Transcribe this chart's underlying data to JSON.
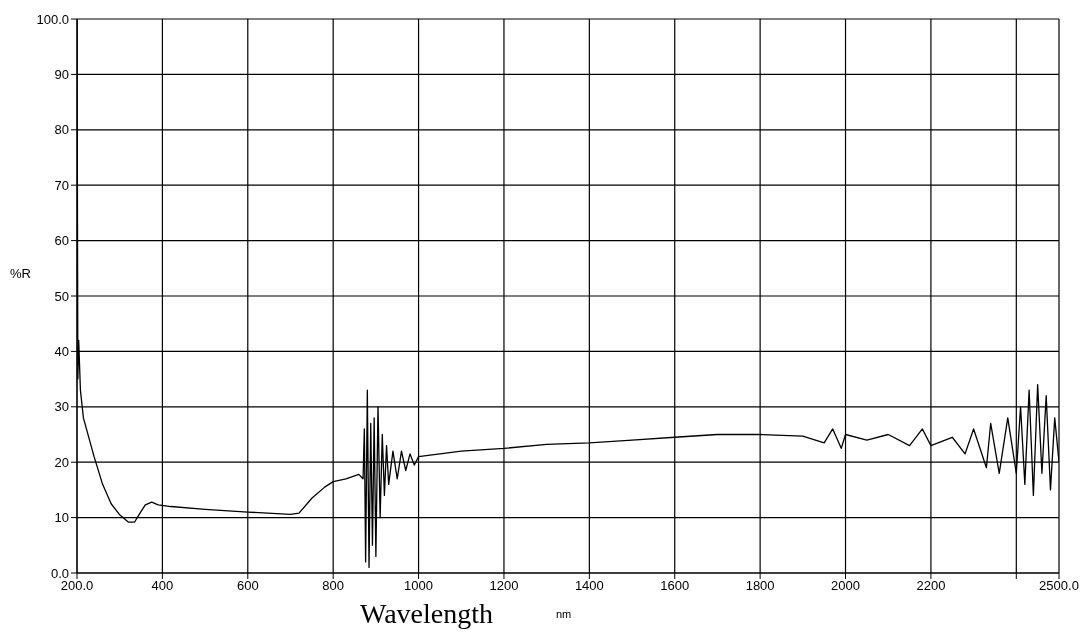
{
  "chart_data": {
    "type": "line",
    "xlabel": "Wavelength",
    "ylabel": "%R",
    "annotations": [
      "nm"
    ],
    "xlim": [
      200,
      2500
    ],
    "xticks": [
      {
        "value": 200,
        "label": "200.0"
      },
      400,
      600,
      800,
      1000,
      1200,
      1400,
      1600,
      1800,
      2000,
      2200,
      {
        "value": 2400,
        "label": null
      },
      {
        "value": 2500,
        "label": "2500.0"
      }
    ],
    "ylim": [
      0,
      100
    ],
    "yticks": [
      {
        "value": 0,
        "label": "0.0"
      },
      10,
      20,
      30,
      40,
      50,
      60,
      70,
      80,
      90,
      {
        "value": 100,
        "label": "100.0"
      }
    ],
    "grid": true,
    "marker": "none",
    "line_style": "solid",
    "series": [
      {
        "color": "#000000",
        "x": [
          200,
          202,
          204,
          208,
          215,
          240,
          260,
          280,
          300,
          320,
          335,
          345,
          360,
          375,
          390,
          420,
          500,
          600,
          700,
          720,
          750,
          780,
          800,
          830,
          860,
          870,
          873,
          876,
          880,
          884,
          888,
          892,
          896,
          900,
          905,
          910,
          915,
          920,
          925,
          930,
          940,
          950,
          960,
          970,
          980,
          990,
          1000,
          1050,
          1100,
          1200,
          1300,
          1400,
          1500,
          1600,
          1700,
          1800,
          1900,
          1950,
          1970,
          1990,
          2000,
          2050,
          2100,
          2150,
          2180,
          2200,
          2250,
          2280,
          2300,
          2330,
          2340,
          2360,
          2380,
          2400,
          2410,
          2420,
          2430,
          2440,
          2450,
          2460,
          2470,
          2480,
          2490,
          2500
        ],
        "values": [
          100,
          35,
          42,
          33,
          28,
          21,
          16,
          12.5,
          10.5,
          9.2,
          9.2,
          10.5,
          12.3,
          12.8,
          12.3,
          12,
          11.5,
          11,
          10.6,
          10.8,
          13.5,
          15.5,
          16.5,
          17,
          17.8,
          17,
          26,
          2,
          33,
          1,
          27,
          5,
          28,
          3,
          30,
          10,
          25,
          14,
          23,
          16,
          22,
          17,
          22,
          18.5,
          21.5,
          19.5,
          21,
          21.5,
          22,
          22.5,
          23.2,
          23.5,
          24,
          24.5,
          25,
          25,
          24.7,
          23.5,
          26,
          22.5,
          25,
          24,
          25,
          23,
          26,
          23,
          24.5,
          21.5,
          26,
          19,
          27,
          18,
          28,
          18,
          30,
          16,
          33,
          14,
          34,
          18,
          32,
          15,
          28,
          20
        ]
      }
    ]
  }
}
